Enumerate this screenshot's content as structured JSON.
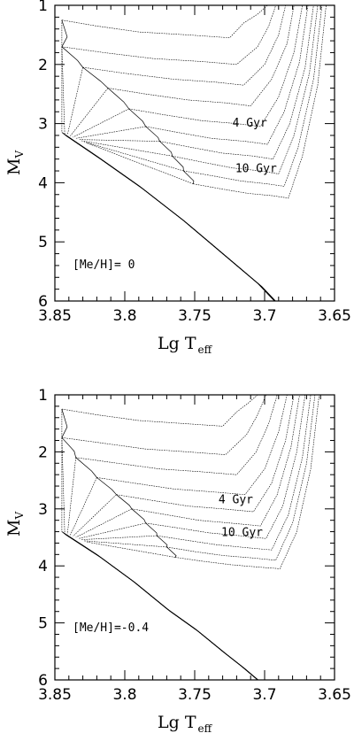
{
  "chart_data": [
    {
      "type": "line",
      "xlabel": "Lg T",
      "xlabel_sub": "eff",
      "ylabel": "M",
      "ylabel_sub": "V",
      "xlim": [
        3.85,
        3.65
      ],
      "ylim": [
        6,
        1
      ],
      "xticks": [
        "3.85",
        "3.8",
        "3.75",
        "3.7",
        "3.65"
      ],
      "yticks": [
        "1",
        "2",
        "3",
        "4",
        "5",
        "6"
      ],
      "metallicity_label": "[Me/H]= 0",
      "annotations": [
        {
          "text": "4 Gyr",
          "x": 3.723,
          "y": 3.05
        },
        {
          "text": "10 Gyr",
          "x": 3.721,
          "y": 3.82
        }
      ],
      "series_note": "isochrones",
      "isochrones": [
        {
          "x": [
            3.845,
            3.82,
            3.79,
            3.755,
            3.725,
            3.715,
            3.705,
            3.698
          ],
          "y": [
            1.25,
            1.35,
            1.45,
            1.5,
            1.55,
            1.3,
            1.15,
            1.0
          ]
        },
        {
          "x": [
            3.845,
            3.815,
            3.78,
            3.745,
            3.72,
            3.705,
            3.697,
            3.692
          ],
          "y": [
            1.7,
            1.8,
            1.9,
            1.95,
            2.0,
            1.7,
            1.35,
            1.0
          ]
        },
        {
          "x": [
            3.83,
            3.8,
            3.765,
            3.735,
            3.715,
            3.7,
            3.69,
            3.685
          ],
          "y": [
            2.05,
            2.15,
            2.25,
            2.3,
            2.35,
            2.0,
            1.5,
            1.0
          ]
        },
        {
          "x": [
            3.812,
            3.785,
            3.755,
            3.728,
            3.71,
            3.695,
            3.684,
            3.679
          ],
          "y": [
            2.4,
            2.5,
            2.6,
            2.65,
            2.7,
            2.25,
            1.65,
            1.0
          ]
        },
        {
          "x": [
            3.797,
            3.772,
            3.745,
            3.72,
            3.703,
            3.69,
            3.679,
            3.673
          ],
          "y": [
            2.75,
            2.85,
            2.95,
            3.0,
            3.05,
            2.55,
            1.8,
            1.0
          ]
        },
        {
          "x": [
            3.785,
            3.762,
            3.738,
            3.714,
            3.698,
            3.686,
            3.675,
            3.669
          ],
          "y": [
            3.05,
            3.15,
            3.25,
            3.3,
            3.35,
            2.8,
            1.95,
            1.0
          ]
        },
        {
          "x": [
            3.775,
            3.753,
            3.73,
            3.708,
            3.694,
            3.682,
            3.671,
            3.665
          ],
          "y": [
            3.3,
            3.4,
            3.5,
            3.55,
            3.6,
            3.0,
            2.05,
            1.0
          ]
        },
        {
          "x": [
            3.766,
            3.745,
            3.723,
            3.703,
            3.69,
            3.679,
            3.668,
            3.662
          ],
          "y": [
            3.55,
            3.65,
            3.75,
            3.8,
            3.85,
            3.2,
            2.15,
            1.0
          ]
        },
        {
          "x": [
            3.758,
            3.738,
            3.717,
            3.698,
            3.686,
            3.676,
            3.665,
            3.659
          ],
          "y": [
            3.8,
            3.88,
            3.97,
            4.02,
            4.06,
            3.4,
            2.25,
            1.0
          ]
        },
        {
          "x": [
            3.751,
            3.732,
            3.712,
            3.694,
            3.683,
            3.673,
            3.662,
            3.656
          ],
          "y": [
            4.02,
            4.1,
            4.18,
            4.22,
            4.26,
            3.55,
            2.35,
            1.0
          ]
        }
      ],
      "zams": {
        "x": [
          3.845,
          3.82,
          3.79,
          3.76,
          3.74,
          3.72,
          3.705,
          3.693
        ],
        "y": [
          3.15,
          3.55,
          4.05,
          4.6,
          5.0,
          5.4,
          5.7,
          6.0
        ]
      }
    },
    {
      "type": "line",
      "xlabel": "Lg T",
      "xlabel_sub": "eff",
      "ylabel": "M",
      "ylabel_sub": "V",
      "xlim": [
        3.85,
        3.65
      ],
      "ylim": [
        6,
        1
      ],
      "xticks": [
        "3.85",
        "3.8",
        "3.75",
        "3.7",
        "3.65"
      ],
      "yticks": [
        "1",
        "2",
        "3",
        "4",
        "5",
        "6"
      ],
      "metallicity_label": "[Me/H]=-0.4",
      "annotations": [
        {
          "text": "4 Gyr",
          "x": 3.733,
          "y": 2.9
        },
        {
          "text": "10 Gyr",
          "x": 3.731,
          "y": 3.48
        }
      ],
      "series_note": "isochrones",
      "isochrones": [
        {
          "x": [
            3.845,
            3.82,
            3.79,
            3.76,
            3.73,
            3.72,
            3.712,
            3.705
          ],
          "y": [
            1.25,
            1.35,
            1.45,
            1.5,
            1.55,
            1.3,
            1.15,
            1.0
          ]
        },
        {
          "x": [
            3.845,
            3.815,
            3.785,
            3.755,
            3.728,
            3.713,
            3.705,
            3.699
          ],
          "y": [
            1.75,
            1.85,
            1.95,
            2.0,
            2.05,
            1.7,
            1.35,
            1.0
          ]
        },
        {
          "x": [
            3.835,
            3.805,
            3.775,
            3.745,
            3.72,
            3.706,
            3.697,
            3.691
          ],
          "y": [
            2.1,
            2.2,
            2.3,
            2.35,
            2.4,
            2.0,
            1.5,
            1.0
          ]
        },
        {
          "x": [
            3.82,
            3.793,
            3.765,
            3.738,
            3.714,
            3.7,
            3.69,
            3.684
          ],
          "y": [
            2.45,
            2.55,
            2.65,
            2.7,
            2.75,
            2.3,
            1.65,
            1.0
          ]
        },
        {
          "x": [
            3.806,
            3.781,
            3.755,
            3.73,
            3.708,
            3.695,
            3.685,
            3.679
          ],
          "y": [
            2.75,
            2.85,
            2.95,
            3.0,
            3.05,
            2.55,
            1.8,
            1.0
          ]
        },
        {
          "x": [
            3.795,
            3.771,
            3.747,
            3.724,
            3.703,
            3.691,
            3.681,
            3.675
          ],
          "y": [
            3.0,
            3.1,
            3.2,
            3.25,
            3.3,
            2.75,
            1.9,
            1.0
          ]
        },
        {
          "x": [
            3.785,
            3.763,
            3.74,
            3.718,
            3.699,
            3.687,
            3.677,
            3.671
          ],
          "y": [
            3.25,
            3.33,
            3.42,
            3.47,
            3.52,
            2.95,
            2.0,
            1.0
          ]
        },
        {
          "x": [
            3.777,
            3.756,
            3.734,
            3.713,
            3.695,
            3.683,
            3.673,
            3.667
          ],
          "y": [
            3.47,
            3.55,
            3.63,
            3.68,
            3.72,
            3.1,
            2.1,
            1.0
          ]
        },
        {
          "x": [
            3.77,
            3.75,
            3.729,
            3.709,
            3.692,
            3.68,
            3.67,
            3.664
          ],
          "y": [
            3.67,
            3.75,
            3.82,
            3.86,
            3.9,
            3.25,
            2.2,
            1.0
          ]
        },
        {
          "x": [
            3.764,
            3.744,
            3.724,
            3.705,
            3.689,
            3.677,
            3.667,
            3.661
          ],
          "y": [
            3.85,
            3.92,
            3.98,
            4.02,
            4.05,
            3.4,
            2.3,
            1.0
          ]
        }
      ],
      "zams": {
        "x": [
          3.845,
          3.82,
          3.795,
          3.77,
          3.75,
          3.73,
          3.717,
          3.705
        ],
        "y": [
          3.4,
          3.8,
          4.25,
          4.75,
          5.1,
          5.5,
          5.75,
          6.0
        ]
      }
    }
  ]
}
